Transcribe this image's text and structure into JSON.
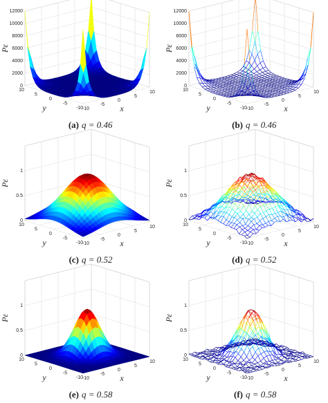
{
  "chart_data": [
    {
      "type": "surface",
      "style": "filled",
      "label": "(a)",
      "caption": "q = 0.46",
      "xlabel": "x",
      "ylabel": "y",
      "zlabel": "Pε",
      "xlim": [
        -10,
        10
      ],
      "ylim": [
        -10,
        10
      ],
      "zlim": [
        0,
        12000
      ],
      "xticks": [
        -10,
        -5,
        0,
        5,
        10
      ],
      "yticks": [
        -10,
        -5,
        0,
        5,
        10
      ],
      "zticks": [
        0,
        2000,
        4000,
        6000,
        8000,
        10000,
        12000
      ],
      "grid": true
    },
    {
      "type": "surface",
      "style": "mesh",
      "label": "(b)",
      "caption": "q = 0.46",
      "xlabel": "x",
      "ylabel": "y",
      "zlabel": "Pε",
      "xlim": [
        -10,
        10
      ],
      "ylim": [
        -10,
        10
      ],
      "zlim": [
        0,
        12000
      ],
      "xticks": [
        -10,
        -5,
        0,
        5,
        10
      ],
      "yticks": [
        -10,
        -5,
        0,
        5,
        10
      ],
      "zticks": [
        0,
        2000,
        4000,
        6000,
        8000,
        10000,
        12000
      ],
      "grid": true
    },
    {
      "type": "surface",
      "style": "filled",
      "label": "(c)",
      "caption": "q = 0.52",
      "xlabel": "x",
      "ylabel": "y",
      "zlabel": "Pε",
      "xlim": [
        -10,
        10
      ],
      "ylim": [
        -10,
        10
      ],
      "zlim": [
        0,
        1.5
      ],
      "xticks": [
        -10,
        -5,
        0,
        5,
        10
      ],
      "yticks": [
        -10,
        -5,
        0,
        5,
        10
      ],
      "zticks": [
        0,
        0.5,
        1
      ],
      "grid": true
    },
    {
      "type": "surface",
      "style": "mesh",
      "label": "(d)",
      "caption": "q = 0.52",
      "xlabel": "x",
      "ylabel": "y",
      "zlabel": "Pε",
      "xlim": [
        -10,
        10
      ],
      "ylim": [
        -10,
        10
      ],
      "zlim": [
        0,
        1.5
      ],
      "xticks": [
        -10,
        -5,
        0,
        5,
        10
      ],
      "yticks": [
        -10,
        -5,
        0,
        5,
        10
      ],
      "zticks": [
        0,
        0.5,
        1
      ],
      "grid": true
    },
    {
      "type": "surface",
      "style": "filled",
      "label": "(e)",
      "caption": "q = 0.58",
      "xlabel": "x",
      "ylabel": "y",
      "zlabel": "Pε",
      "xlim": [
        -10,
        10
      ],
      "ylim": [
        -10,
        10
      ],
      "zlim": [
        0,
        1.5
      ],
      "xticks": [
        -10,
        -5,
        0,
        5,
        10
      ],
      "yticks": [
        -10,
        -5,
        0,
        5,
        10
      ],
      "zticks": [
        0,
        0.5,
        1
      ],
      "grid": true
    },
    {
      "type": "surface",
      "style": "mesh",
      "label": "(f)",
      "caption": "q = 0.58",
      "xlabel": "x",
      "ylabel": "y",
      "zlabel": "Pε",
      "xlim": [
        -10,
        10
      ],
      "ylim": [
        -10,
        10
      ],
      "zlim": [
        0,
        1.5
      ],
      "xticks": [
        -10,
        -5,
        0,
        5,
        10
      ],
      "yticks": [
        -10,
        -5,
        0,
        5,
        10
      ],
      "zticks": [
        0,
        0.5,
        1
      ],
      "grid": true
    }
  ]
}
